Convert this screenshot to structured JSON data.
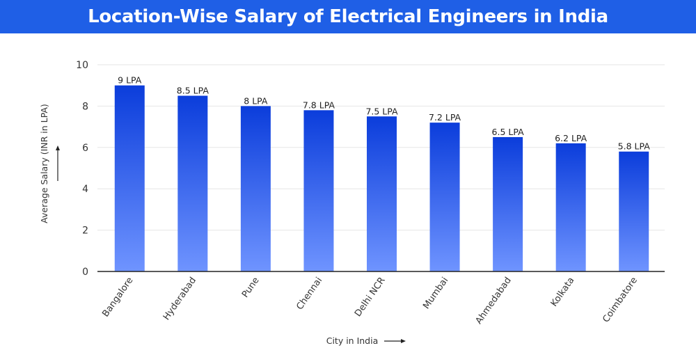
{
  "chart_data": {
    "type": "bar",
    "title": "Location-Wise Salary of Electrical Engineers in India",
    "xlabel": "City in India",
    "ylabel": "Average Salary (INR in LPA)",
    "categories": [
      "Bangalore",
      "Hyderabad",
      "Pune",
      "Chennai",
      "Delhi NCR",
      "Mumbai",
      "Ahmedabad",
      "Kolkata",
      "Coimbatore"
    ],
    "values": [
      9,
      8.5,
      8,
      7.8,
      7.5,
      7.2,
      6.5,
      6.2,
      5.8
    ],
    "data_labels": [
      "9 LPA",
      "8.5 LPA",
      "8 LPA",
      "7.8 LPA",
      "7.5 LPA",
      "7.2 LPA",
      "6.5 LPA",
      "6.2 LPA",
      "5.8 LPA"
    ],
    "ylim": [
      0,
      10
    ],
    "yticks": [
      0,
      2,
      4,
      6,
      8,
      10
    ],
    "grid": true,
    "colors": {
      "bar_top": "#0b3ddb",
      "bar_bottom": "#6f94ff",
      "header": "#1f5fe6",
      "grid": "#e6e6e6"
    }
  }
}
